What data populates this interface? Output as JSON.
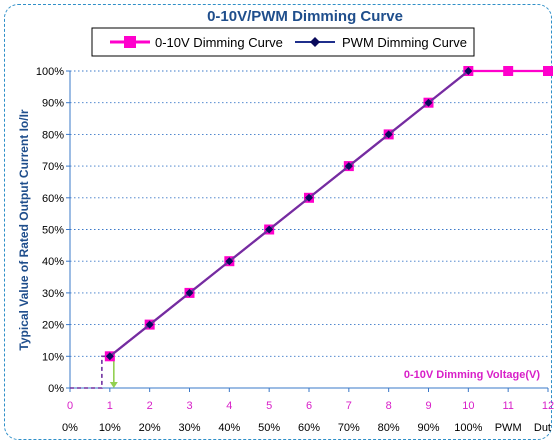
{
  "chart_data": {
    "type": "line",
    "title": "0-10V/PWM Dimming Curve",
    "ylabel": "Typical Value of Rated Output Current Io/Ir",
    "annotation": "0-10V Dimming Voltage(V)",
    "x_voltage_ticks": [
      "0",
      "1",
      "2",
      "3",
      "4",
      "5",
      "6",
      "7",
      "8",
      "9",
      "10",
      "11",
      "12"
    ],
    "x_pwm_ticks": [
      "0%",
      "10%",
      "20%",
      "30%",
      "40%",
      "50%",
      "60%",
      "70%",
      "80%",
      "90%",
      "100%",
      "PWM",
      "Dut"
    ],
    "y_ticks": [
      "0%",
      "10%",
      "20%",
      "30%",
      "40%",
      "50%",
      "60%",
      "70%",
      "80%",
      "90%",
      "100%"
    ],
    "xlim": [
      0,
      12
    ],
    "ylim": [
      0,
      100
    ],
    "grid": true,
    "legend_position": "top",
    "series": [
      {
        "name": "0-10V Dimming Curve",
        "color": "#ff00cc",
        "marker": "square",
        "x": [
          1,
          2,
          3,
          4,
          5,
          6,
          7,
          8,
          9,
          10,
          11,
          12
        ],
        "y": [
          10,
          20,
          30,
          40,
          50,
          60,
          70,
          80,
          90,
          100,
          100,
          100
        ]
      },
      {
        "name": "PWM Dimming Curve",
        "color": "#7030a0",
        "marker": "diamond",
        "x": [
          1,
          2,
          3,
          4,
          5,
          6,
          7,
          8,
          9,
          10
        ],
        "y": [
          10,
          20,
          30,
          40,
          50,
          60,
          70,
          80,
          90,
          100
        ]
      }
    ],
    "hysteresis_guides": {
      "colors": [
        "#7030a0",
        "#92d050"
      ]
    }
  }
}
